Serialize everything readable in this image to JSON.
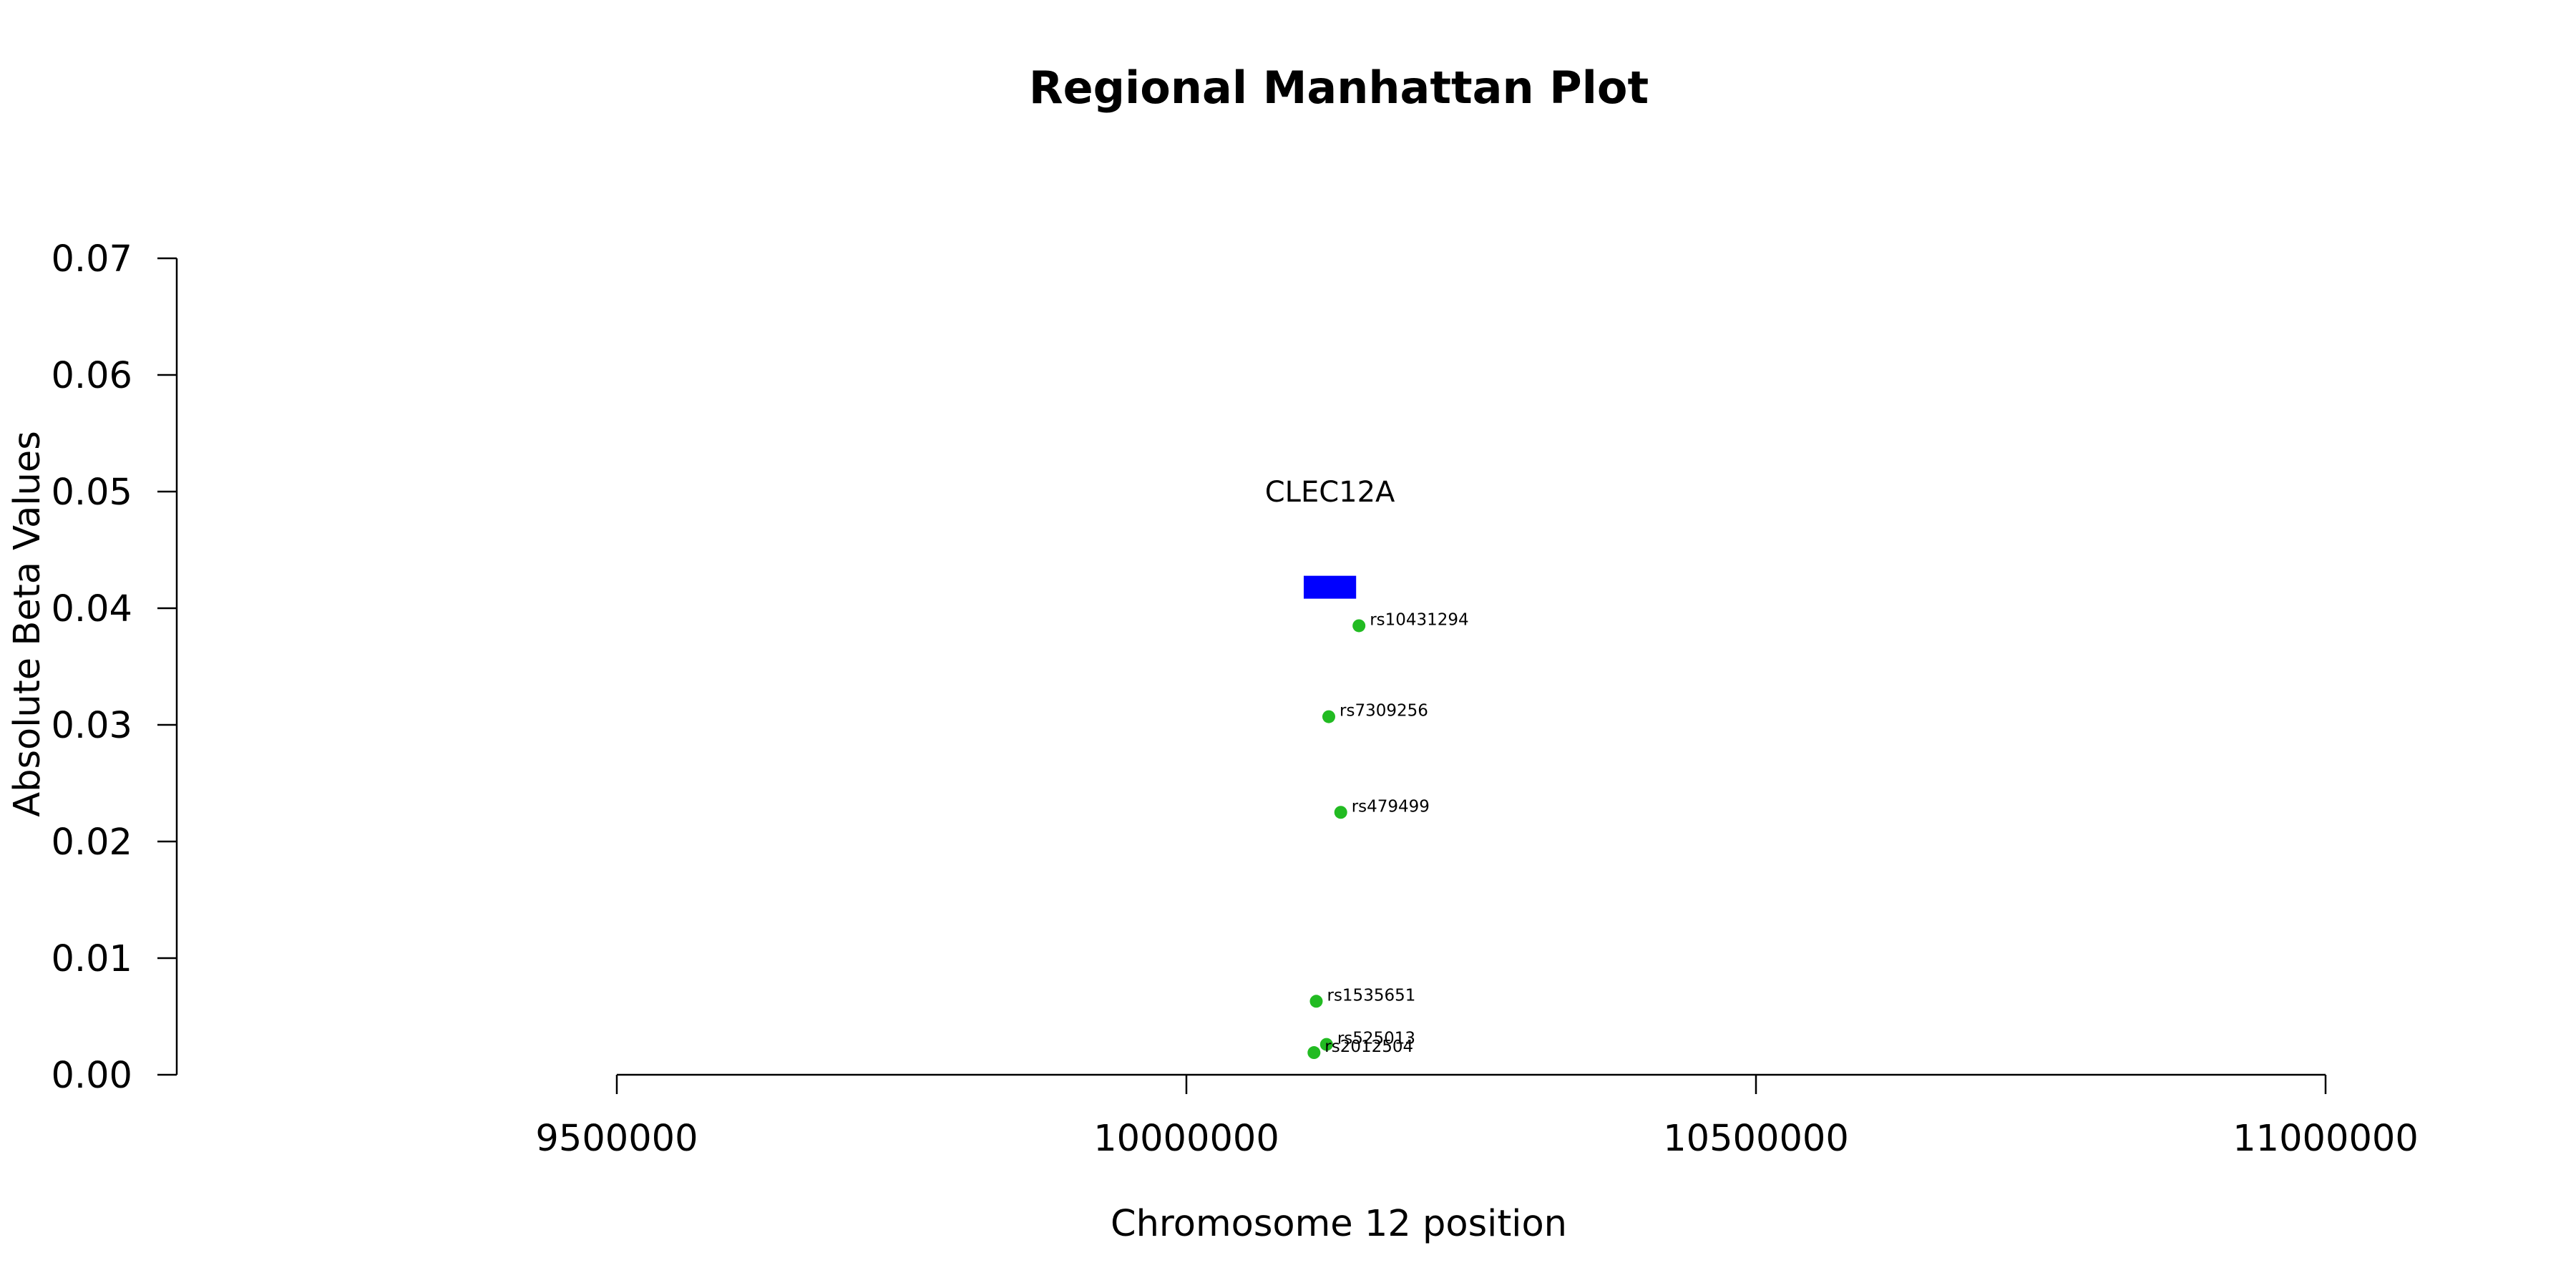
{
  "chart_data": {
    "type": "scatter",
    "title": "Regional Manhattan Plot",
    "xlabel": "Chromosome 12 position",
    "ylabel": "Absolute Beta Values",
    "xlim": [
      9500000,
      11000000
    ],
    "ylim": [
      0,
      0.07
    ],
    "x_ticks": [
      9500000,
      10000000,
      10500000,
      11000000
    ],
    "x_tick_labels": [
      "9500000",
      "10000000",
      "10500000",
      "11000000"
    ],
    "y_ticks": [
      0,
      0.01,
      0.02,
      0.03,
      0.04,
      0.05,
      0.06,
      0.07
    ],
    "y_tick_labels": [
      "0.00",
      "0.01",
      "0.02",
      "0.03",
      "0.04",
      "0.05",
      "0.06",
      "0.07"
    ],
    "grid": false,
    "legend": "none",
    "series": [
      {
        "color": "#22bb22",
        "points": [
          {
            "label": "rs10431294",
            "x": 10151500,
            "y": 0.0385
          },
          {
            "label": "rs7309256",
            "x": 10125000,
            "y": 0.0307
          },
          {
            "label": "rs479499",
            "x": 10135500,
            "y": 0.0225
          },
          {
            "label": "rs1535651",
            "x": 10114000,
            "y": 0.0063
          },
          {
            "label": "rs525013",
            "x": 10123000,
            "y": 0.0026
          },
          {
            "label": "rs2012504",
            "x": 10112000,
            "y": 0.0019
          }
        ]
      }
    ],
    "genes": [
      {
        "name": "CLEC12A",
        "start": 10103000,
        "end": 10149000,
        "y": 0.0418,
        "color": "#0000ff"
      }
    ]
  }
}
